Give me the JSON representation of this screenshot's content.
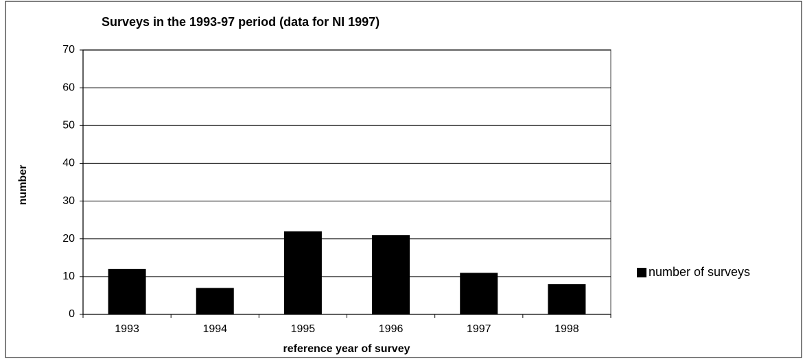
{
  "chart_data": {
    "type": "bar",
    "title": "Surveys in the 1993-97 period (data for NI 1997)",
    "x_label": "reference year of survey",
    "y_label": "number",
    "categories": [
      "1993",
      "1994",
      "1995",
      "1996",
      "1997",
      "1998"
    ],
    "series": [
      {
        "name": "number of surveys",
        "color": "#000000",
        "values": [
          12,
          7,
          22,
          21,
          11,
          8
        ]
      }
    ],
    "ylim": [
      0,
      70
    ],
    "yticks": [
      0,
      10,
      20,
      30,
      40,
      50,
      60,
      70
    ],
    "grid": true,
    "legend": "right"
  }
}
